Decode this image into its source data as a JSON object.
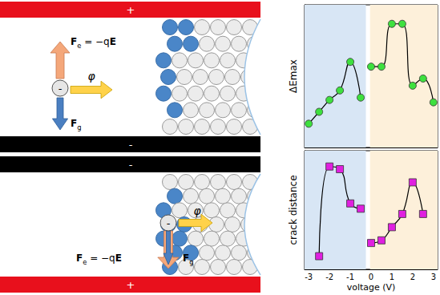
{
  "chart_data": [
    {
      "type": "line",
      "y_label": "ΔEmax",
      "xlim": [
        -3.2,
        3.2
      ],
      "xticks": [
        -3,
        -2,
        -1,
        0,
        1,
        2,
        3
      ],
      "ylim": [
        0,
        6
      ],
      "yticks": [
        1,
        2,
        3,
        4,
        5
      ],
      "tick_labels": false,
      "grid": false,
      "marker": "circle",
      "line_style": "smooth",
      "color": "#3ee03e",
      "regions": [
        {
          "from": -3.2,
          "to": -0.25,
          "color": "#d8e6f5"
        },
        {
          "from": -0.05,
          "to": 3.2,
          "color": "#fdf0da"
        }
      ],
      "series": [
        {
          "x": [
            -3,
            -2.5,
            -2,
            -1.5,
            -1,
            -0.5
          ],
          "values": [
            1.0,
            1.5,
            2.0,
            2.4,
            3.6,
            2.1
          ]
        },
        {
          "x": [
            0,
            0.5,
            1,
            1.5,
            2,
            2.5,
            3
          ],
          "values": [
            3.4,
            3.4,
            5.2,
            5.2,
            2.6,
            2.9,
            1.9
          ]
        }
      ]
    },
    {
      "type": "line",
      "y_label": "crack distance",
      "x_label": "voltage (V)",
      "xlim": [
        -3.2,
        3.2
      ],
      "xticks": [
        -3,
        -2,
        -1,
        0,
        1,
        2,
        3
      ],
      "ylim": [
        0.5,
        5
      ],
      "yticks": [
        1,
        2,
        3,
        4
      ],
      "tick_labels": "x",
      "grid": false,
      "marker": "square",
      "line_style": "smooth",
      "color": "#e020e0",
      "regions": [
        {
          "from": -3.2,
          "to": -0.25,
          "color": "#d8e6f5"
        },
        {
          "from": -0.05,
          "to": 3.2,
          "color": "#fdf0da"
        }
      ],
      "series": [
        {
          "x": [
            -2.5,
            -2,
            -1.5,
            -1,
            -0.5
          ],
          "values": [
            1.0,
            4.4,
            4.3,
            3.0,
            2.8
          ]
        },
        {
          "x": [
            0,
            0.5,
            1,
            1.5,
            2,
            2.5
          ],
          "values": [
            1.5,
            1.6,
            2.1,
            2.6,
            3.8,
            2.6
          ]
        }
      ]
    }
  ],
  "diagram": {
    "panels": [
      {
        "top_plate": "+",
        "bottom_plate": "-",
        "charge": "-",
        "flow": "φ",
        "force_e": [
          "F",
          "e",
          " = −q",
          "E"
        ],
        "force_g": [
          "F",
          "g"
        ]
      },
      {
        "top_plate": "-",
        "bottom_plate": "+",
        "charge": "-",
        "flow": "φ",
        "force_e": [
          "F",
          "e",
          " = −q",
          "E"
        ],
        "force_g": [
          "F",
          "g"
        ]
      }
    ]
  }
}
